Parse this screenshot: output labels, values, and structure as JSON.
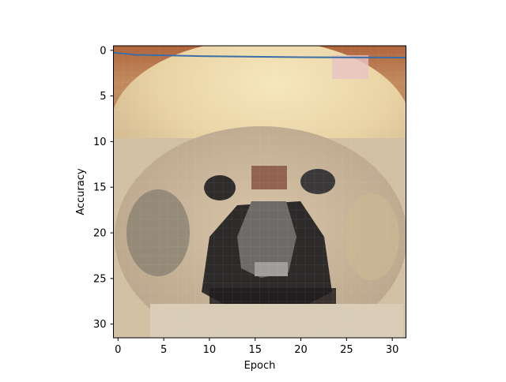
{
  "chart_data": {
    "type": "line",
    "title": "",
    "xlabel": "Epoch",
    "ylabel": "Accuracy",
    "xlim": [
      -0.5,
      31.5
    ],
    "ylim": [
      31.5,
      -0.5
    ],
    "y_axis_inverted": true,
    "xticks": [
      0,
      5,
      10,
      15,
      20,
      25,
      30
    ],
    "yticks": [
      0,
      5,
      10,
      15,
      20,
      25,
      30
    ],
    "grid": false,
    "legend": "none",
    "background_image": {
      "description": "32x32 pixelated image of a fluffy light-colored dog face (Pekingese-like) on a brownish-orange background",
      "extent": [
        -0.5,
        31.5,
        31.5,
        -0.5
      ]
    },
    "series": [
      {
        "color": "#3a6ea5",
        "x": [
          -0.5,
          2,
          5,
          10,
          15,
          20,
          25,
          31.5
        ],
        "y": [
          0.25,
          0.5,
          0.55,
          0.65,
          0.7,
          0.75,
          0.78,
          0.8
        ]
      }
    ]
  }
}
